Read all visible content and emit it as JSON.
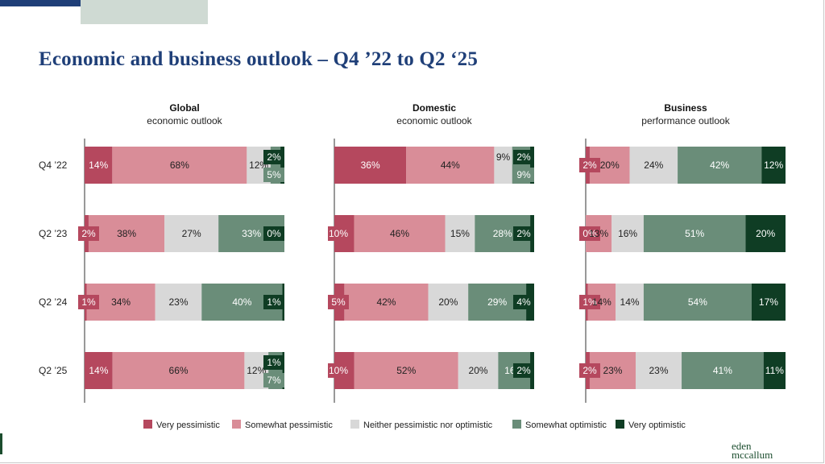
{
  "page": {
    "title": "Economic and business outlook – Q4 ’22 to Q2 ‘25",
    "logo": {
      "line1": "eden",
      "line2": "mccallum"
    }
  },
  "colors": {
    "very_pessimistic": "#b5485e",
    "somewhat_pessimistic": "#d98d98",
    "neither": "#d8d8d8",
    "somewhat_optimistic": "#6a8d79",
    "very_optimistic": "#0f3d24"
  },
  "chart_data": {
    "type": "bar",
    "orientation": "horizontal-stacked-100",
    "categories": [
      "Q4 ’22",
      "Q2 ’23",
      "Q2 ’24",
      "Q2 ’25"
    ],
    "legend": [
      "Very pessimistic",
      "Somewhat pessimistic",
      "Neither pessimistic nor optimistic",
      "Somewhat optimistic",
      "Very optimistic"
    ],
    "legend_position": "bottom",
    "panels": [
      {
        "title": "Global",
        "subtitle": "economic outlook",
        "rows": [
          [
            14,
            68,
            12,
            5,
            2
          ],
          [
            2,
            38,
            27,
            33,
            0
          ],
          [
            1,
            34,
            23,
            40,
            1
          ],
          [
            14,
            66,
            12,
            7,
            1
          ]
        ]
      },
      {
        "title": "Domestic",
        "subtitle": "economic outlook",
        "rows": [
          [
            36,
            44,
            9,
            9,
            2
          ],
          [
            10,
            46,
            15,
            28,
            2
          ],
          [
            5,
            42,
            20,
            29,
            4
          ],
          [
            10,
            52,
            20,
            16,
            2
          ]
        ]
      },
      {
        "title": "Business",
        "subtitle": "performance outlook",
        "rows": [
          [
            2,
            20,
            24,
            42,
            12
          ],
          [
            0,
            13,
            16,
            51,
            20
          ],
          [
            1,
            14,
            14,
            54,
            17
          ],
          [
            2,
            23,
            23,
            41,
            11
          ]
        ]
      }
    ]
  }
}
